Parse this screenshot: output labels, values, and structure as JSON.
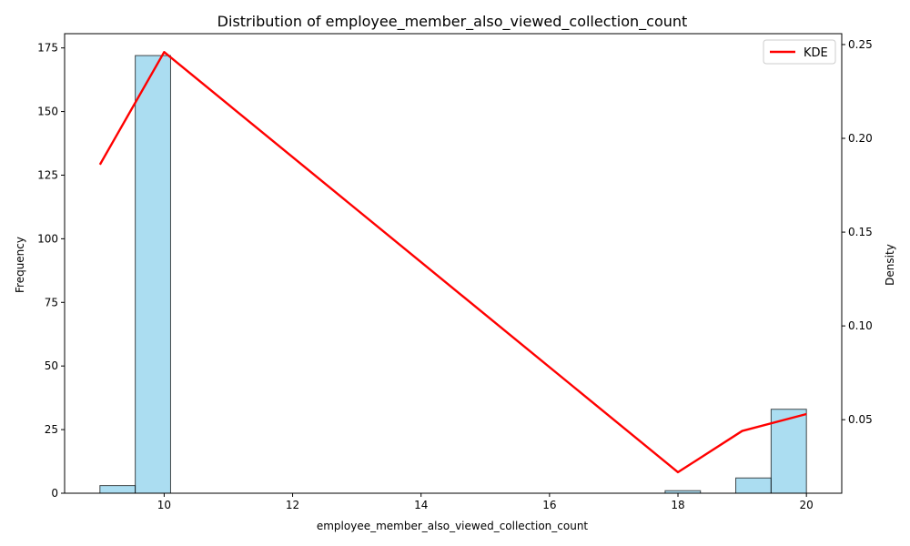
{
  "chart_data": {
    "type": "bar",
    "title": "Distribution of employee_member_also_viewed_collection_count",
    "xlabel": "employee_member_also_viewed_collection_count",
    "ylabel": "Frequency",
    "y2label": "Density",
    "xlim": [
      8.45,
      20.55
    ],
    "ylim": [
      0,
      180.6
    ],
    "y2lim": [
      0.0108,
      0.2558
    ],
    "x_ticks": [
      10,
      12,
      14,
      16,
      18,
      20
    ],
    "y_ticks": [
      0,
      25,
      50,
      75,
      100,
      125,
      150,
      175
    ],
    "y2_ticks": [
      0.05,
      0.1,
      0.15,
      0.2,
      0.25
    ],
    "y2_tick_labels": [
      "0.05",
      "0.10",
      "0.15",
      "0.20",
      "0.25"
    ],
    "histogram": {
      "bar_color": "#87ceeb",
      "edge_color": "#000000",
      "bins": [
        {
          "x0": 9.0,
          "x1": 9.55,
          "count": 3
        },
        {
          "x0": 9.55,
          "x1": 10.1,
          "count": 172
        },
        {
          "x0": 17.8,
          "x1": 18.35,
          "count": 1
        },
        {
          "x0": 18.9,
          "x1": 19.45,
          "count": 6
        },
        {
          "x0": 19.45,
          "x1": 20.0,
          "count": 33
        }
      ]
    },
    "kde": {
      "name": "KDE",
      "color": "#ff0000",
      "x": [
        9,
        10,
        18,
        19,
        20
      ],
      "y": [
        0.186,
        0.246,
        0.022,
        0.044,
        0.053
      ]
    },
    "legend": {
      "placement": "top-right",
      "entries": [
        "KDE"
      ]
    }
  }
}
